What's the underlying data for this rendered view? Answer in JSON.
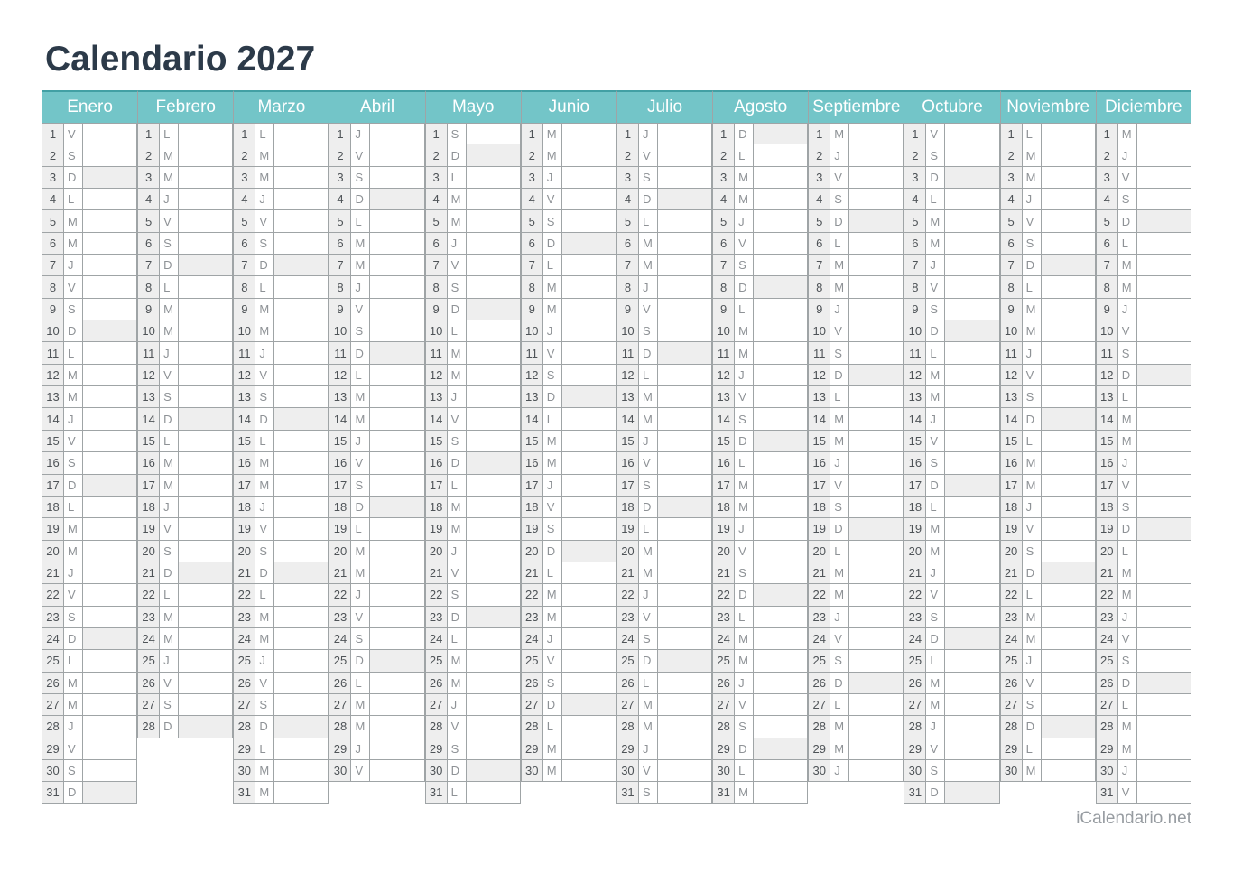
{
  "page": {
    "title": "Calendario 2027",
    "footer": "iCalendario.net"
  },
  "theme": {
    "header_bg": "#73C5C8",
    "header_top_border": "#42A0A4",
    "header_text": "#FFFFFF",
    "grid_border": "#9FA4A6",
    "shaded_cell_bg": "#EEEEEE",
    "number_text": "#4E5357",
    "letter_text": "#8E9296",
    "title_text": "#2C3A49",
    "footer_text": "#979CA1"
  },
  "weekday_letters": {
    "monday": "L",
    "tuesday": "M",
    "wednesday": "M",
    "thursday": "J",
    "friday": "V",
    "saturday": "S",
    "sunday": "D"
  },
  "months": [
    {
      "name": "Enero",
      "days": [
        [
          1,
          "V"
        ],
        [
          2,
          "S"
        ],
        [
          3,
          "D"
        ],
        [
          4,
          "L"
        ],
        [
          5,
          "M"
        ],
        [
          6,
          "M"
        ],
        [
          7,
          "J"
        ],
        [
          8,
          "V"
        ],
        [
          9,
          "S"
        ],
        [
          10,
          "D"
        ],
        [
          11,
          "L"
        ],
        [
          12,
          "M"
        ],
        [
          13,
          "M"
        ],
        [
          14,
          "J"
        ],
        [
          15,
          "V"
        ],
        [
          16,
          "S"
        ],
        [
          17,
          "D"
        ],
        [
          18,
          "L"
        ],
        [
          19,
          "M"
        ],
        [
          20,
          "M"
        ],
        [
          21,
          "J"
        ],
        [
          22,
          "V"
        ],
        [
          23,
          "S"
        ],
        [
          24,
          "D"
        ],
        [
          25,
          "L"
        ],
        [
          26,
          "M"
        ],
        [
          27,
          "M"
        ],
        [
          28,
          "J"
        ],
        [
          29,
          "V"
        ],
        [
          30,
          "S"
        ],
        [
          31,
          "D"
        ]
      ]
    },
    {
      "name": "Febrero",
      "days": [
        [
          1,
          "L"
        ],
        [
          2,
          "M"
        ],
        [
          3,
          "M"
        ],
        [
          4,
          "J"
        ],
        [
          5,
          "V"
        ],
        [
          6,
          "S"
        ],
        [
          7,
          "D"
        ],
        [
          8,
          "L"
        ],
        [
          9,
          "M"
        ],
        [
          10,
          "M"
        ],
        [
          11,
          "J"
        ],
        [
          12,
          "V"
        ],
        [
          13,
          "S"
        ],
        [
          14,
          "D"
        ],
        [
          15,
          "L"
        ],
        [
          16,
          "M"
        ],
        [
          17,
          "M"
        ],
        [
          18,
          "J"
        ],
        [
          19,
          "V"
        ],
        [
          20,
          "S"
        ],
        [
          21,
          "D"
        ],
        [
          22,
          "L"
        ],
        [
          23,
          "M"
        ],
        [
          24,
          "M"
        ],
        [
          25,
          "J"
        ],
        [
          26,
          "V"
        ],
        [
          27,
          "S"
        ],
        [
          28,
          "D"
        ]
      ]
    },
    {
      "name": "Marzo",
      "days": [
        [
          1,
          "L"
        ],
        [
          2,
          "M"
        ],
        [
          3,
          "M"
        ],
        [
          4,
          "J"
        ],
        [
          5,
          "V"
        ],
        [
          6,
          "S"
        ],
        [
          7,
          "D"
        ],
        [
          8,
          "L"
        ],
        [
          9,
          "M"
        ],
        [
          10,
          "M"
        ],
        [
          11,
          "J"
        ],
        [
          12,
          "V"
        ],
        [
          13,
          "S"
        ],
        [
          14,
          "D"
        ],
        [
          15,
          "L"
        ],
        [
          16,
          "M"
        ],
        [
          17,
          "M"
        ],
        [
          18,
          "J"
        ],
        [
          19,
          "V"
        ],
        [
          20,
          "S"
        ],
        [
          21,
          "D"
        ],
        [
          22,
          "L"
        ],
        [
          23,
          "M"
        ],
        [
          24,
          "M"
        ],
        [
          25,
          "J"
        ],
        [
          26,
          "V"
        ],
        [
          27,
          "S"
        ],
        [
          28,
          "D"
        ],
        [
          29,
          "L"
        ],
        [
          30,
          "M"
        ],
        [
          31,
          "M"
        ]
      ]
    },
    {
      "name": "Abril",
      "days": [
        [
          1,
          "J"
        ],
        [
          2,
          "V"
        ],
        [
          3,
          "S"
        ],
        [
          4,
          "D"
        ],
        [
          5,
          "L"
        ],
        [
          6,
          "M"
        ],
        [
          7,
          "M"
        ],
        [
          8,
          "J"
        ],
        [
          9,
          "V"
        ],
        [
          10,
          "S"
        ],
        [
          11,
          "D"
        ],
        [
          12,
          "L"
        ],
        [
          13,
          "M"
        ],
        [
          14,
          "M"
        ],
        [
          15,
          "J"
        ],
        [
          16,
          "V"
        ],
        [
          17,
          "S"
        ],
        [
          18,
          "D"
        ],
        [
          19,
          "L"
        ],
        [
          20,
          "M"
        ],
        [
          21,
          "M"
        ],
        [
          22,
          "J"
        ],
        [
          23,
          "V"
        ],
        [
          24,
          "S"
        ],
        [
          25,
          "D"
        ],
        [
          26,
          "L"
        ],
        [
          27,
          "M"
        ],
        [
          28,
          "M"
        ],
        [
          29,
          "J"
        ],
        [
          30,
          "V"
        ]
      ]
    },
    {
      "name": "Mayo",
      "days": [
        [
          1,
          "S"
        ],
        [
          2,
          "D"
        ],
        [
          3,
          "L"
        ],
        [
          4,
          "M"
        ],
        [
          5,
          "M"
        ],
        [
          6,
          "J"
        ],
        [
          7,
          "V"
        ],
        [
          8,
          "S"
        ],
        [
          9,
          "D"
        ],
        [
          10,
          "L"
        ],
        [
          11,
          "M"
        ],
        [
          12,
          "M"
        ],
        [
          13,
          "J"
        ],
        [
          14,
          "V"
        ],
        [
          15,
          "S"
        ],
        [
          16,
          "D"
        ],
        [
          17,
          "L"
        ],
        [
          18,
          "M"
        ],
        [
          19,
          "M"
        ],
        [
          20,
          "J"
        ],
        [
          21,
          "V"
        ],
        [
          22,
          "S"
        ],
        [
          23,
          "D"
        ],
        [
          24,
          "L"
        ],
        [
          25,
          "M"
        ],
        [
          26,
          "M"
        ],
        [
          27,
          "J"
        ],
        [
          28,
          "V"
        ],
        [
          29,
          "S"
        ],
        [
          30,
          "D"
        ],
        [
          31,
          "L"
        ]
      ]
    },
    {
      "name": "Junio",
      "days": [
        [
          1,
          "M"
        ],
        [
          2,
          "M"
        ],
        [
          3,
          "J"
        ],
        [
          4,
          "V"
        ],
        [
          5,
          "S"
        ],
        [
          6,
          "D"
        ],
        [
          7,
          "L"
        ],
        [
          8,
          "M"
        ],
        [
          9,
          "M"
        ],
        [
          10,
          "J"
        ],
        [
          11,
          "V"
        ],
        [
          12,
          "S"
        ],
        [
          13,
          "D"
        ],
        [
          14,
          "L"
        ],
        [
          15,
          "M"
        ],
        [
          16,
          "M"
        ],
        [
          17,
          "J"
        ],
        [
          18,
          "V"
        ],
        [
          19,
          "S"
        ],
        [
          20,
          "D"
        ],
        [
          21,
          "L"
        ],
        [
          22,
          "M"
        ],
        [
          23,
          "M"
        ],
        [
          24,
          "J"
        ],
        [
          25,
          "V"
        ],
        [
          26,
          "S"
        ],
        [
          27,
          "D"
        ],
        [
          28,
          "L"
        ],
        [
          29,
          "M"
        ],
        [
          30,
          "M"
        ]
      ]
    },
    {
      "name": "Julio",
      "days": [
        [
          1,
          "J"
        ],
        [
          2,
          "V"
        ],
        [
          3,
          "S"
        ],
        [
          4,
          "D"
        ],
        [
          5,
          "L"
        ],
        [
          6,
          "M"
        ],
        [
          7,
          "M"
        ],
        [
          8,
          "J"
        ],
        [
          9,
          "V"
        ],
        [
          10,
          "S"
        ],
        [
          11,
          "D"
        ],
        [
          12,
          "L"
        ],
        [
          13,
          "M"
        ],
        [
          14,
          "M"
        ],
        [
          15,
          "J"
        ],
        [
          16,
          "V"
        ],
        [
          17,
          "S"
        ],
        [
          18,
          "D"
        ],
        [
          19,
          "L"
        ],
        [
          20,
          "M"
        ],
        [
          21,
          "M"
        ],
        [
          22,
          "J"
        ],
        [
          23,
          "V"
        ],
        [
          24,
          "S"
        ],
        [
          25,
          "D"
        ],
        [
          26,
          "L"
        ],
        [
          27,
          "M"
        ],
        [
          28,
          "M"
        ],
        [
          29,
          "J"
        ],
        [
          30,
          "V"
        ],
        [
          31,
          "S"
        ]
      ]
    },
    {
      "name": "Agosto",
      "days": [
        [
          1,
          "D"
        ],
        [
          2,
          "L"
        ],
        [
          3,
          "M"
        ],
        [
          4,
          "M"
        ],
        [
          5,
          "J"
        ],
        [
          6,
          "V"
        ],
        [
          7,
          "S"
        ],
        [
          8,
          "D"
        ],
        [
          9,
          "L"
        ],
        [
          10,
          "M"
        ],
        [
          11,
          "M"
        ],
        [
          12,
          "J"
        ],
        [
          13,
          "V"
        ],
        [
          14,
          "S"
        ],
        [
          15,
          "D"
        ],
        [
          16,
          "L"
        ],
        [
          17,
          "M"
        ],
        [
          18,
          "M"
        ],
        [
          19,
          "J"
        ],
        [
          20,
          "V"
        ],
        [
          21,
          "S"
        ],
        [
          22,
          "D"
        ],
        [
          23,
          "L"
        ],
        [
          24,
          "M"
        ],
        [
          25,
          "M"
        ],
        [
          26,
          "J"
        ],
        [
          27,
          "V"
        ],
        [
          28,
          "S"
        ],
        [
          29,
          "D"
        ],
        [
          30,
          "L"
        ],
        [
          31,
          "M"
        ]
      ]
    },
    {
      "name": "Septiembre",
      "days": [
        [
          1,
          "M"
        ],
        [
          2,
          "J"
        ],
        [
          3,
          "V"
        ],
        [
          4,
          "S"
        ],
        [
          5,
          "D"
        ],
        [
          6,
          "L"
        ],
        [
          7,
          "M"
        ],
        [
          8,
          "M"
        ],
        [
          9,
          "J"
        ],
        [
          10,
          "V"
        ],
        [
          11,
          "S"
        ],
        [
          12,
          "D"
        ],
        [
          13,
          "L"
        ],
        [
          14,
          "M"
        ],
        [
          15,
          "M"
        ],
        [
          16,
          "J"
        ],
        [
          17,
          "V"
        ],
        [
          18,
          "S"
        ],
        [
          19,
          "D"
        ],
        [
          20,
          "L"
        ],
        [
          21,
          "M"
        ],
        [
          22,
          "M"
        ],
        [
          23,
          "J"
        ],
        [
          24,
          "V"
        ],
        [
          25,
          "S"
        ],
        [
          26,
          "D"
        ],
        [
          27,
          "L"
        ],
        [
          28,
          "M"
        ],
        [
          29,
          "M"
        ],
        [
          30,
          "J"
        ]
      ]
    },
    {
      "name": "Octubre",
      "days": [
        [
          1,
          "V"
        ],
        [
          2,
          "S"
        ],
        [
          3,
          "D"
        ],
        [
          4,
          "L"
        ],
        [
          5,
          "M"
        ],
        [
          6,
          "M"
        ],
        [
          7,
          "J"
        ],
        [
          8,
          "V"
        ],
        [
          9,
          "S"
        ],
        [
          10,
          "D"
        ],
        [
          11,
          "L"
        ],
        [
          12,
          "M"
        ],
        [
          13,
          "M"
        ],
        [
          14,
          "J"
        ],
        [
          15,
          "V"
        ],
        [
          16,
          "S"
        ],
        [
          17,
          "D"
        ],
        [
          18,
          "L"
        ],
        [
          19,
          "M"
        ],
        [
          20,
          "M"
        ],
        [
          21,
          "J"
        ],
        [
          22,
          "V"
        ],
        [
          23,
          "S"
        ],
        [
          24,
          "D"
        ],
        [
          25,
          "L"
        ],
        [
          26,
          "M"
        ],
        [
          27,
          "M"
        ],
        [
          28,
          "J"
        ],
        [
          29,
          "V"
        ],
        [
          30,
          "S"
        ],
        [
          31,
          "D"
        ]
      ]
    },
    {
      "name": "Noviembre",
      "days": [
        [
          1,
          "L"
        ],
        [
          2,
          "M"
        ],
        [
          3,
          "M"
        ],
        [
          4,
          "J"
        ],
        [
          5,
          "V"
        ],
        [
          6,
          "S"
        ],
        [
          7,
          "D"
        ],
        [
          8,
          "L"
        ],
        [
          9,
          "M"
        ],
        [
          10,
          "M"
        ],
        [
          11,
          "J"
        ],
        [
          12,
          "V"
        ],
        [
          13,
          "S"
        ],
        [
          14,
          "D"
        ],
        [
          15,
          "L"
        ],
        [
          16,
          "M"
        ],
        [
          17,
          "M"
        ],
        [
          18,
          "J"
        ],
        [
          19,
          "V"
        ],
        [
          20,
          "S"
        ],
        [
          21,
          "D"
        ],
        [
          22,
          "L"
        ],
        [
          23,
          "M"
        ],
        [
          24,
          "M"
        ],
        [
          25,
          "J"
        ],
        [
          26,
          "V"
        ],
        [
          27,
          "S"
        ],
        [
          28,
          "D"
        ],
        [
          29,
          "L"
        ],
        [
          30,
          "M"
        ]
      ]
    },
    {
      "name": "Diciembre",
      "days": [
        [
          1,
          "M"
        ],
        [
          2,
          "J"
        ],
        [
          3,
          "V"
        ],
        [
          4,
          "S"
        ],
        [
          5,
          "D"
        ],
        [
          6,
          "L"
        ],
        [
          7,
          "M"
        ],
        [
          8,
          "M"
        ],
        [
          9,
          "J"
        ],
        [
          10,
          "V"
        ],
        [
          11,
          "S"
        ],
        [
          12,
          "D"
        ],
        [
          13,
          "L"
        ],
        [
          14,
          "M"
        ],
        [
          15,
          "M"
        ],
        [
          16,
          "J"
        ],
        [
          17,
          "V"
        ],
        [
          18,
          "S"
        ],
        [
          19,
          "D"
        ],
        [
          20,
          "L"
        ],
        [
          21,
          "M"
        ],
        [
          22,
          "M"
        ],
        [
          23,
          "J"
        ],
        [
          24,
          "V"
        ],
        [
          25,
          "S"
        ],
        [
          26,
          "D"
        ],
        [
          27,
          "L"
        ],
        [
          28,
          "M"
        ],
        [
          29,
          "M"
        ],
        [
          30,
          "J"
        ],
        [
          31,
          "V"
        ]
      ]
    }
  ]
}
